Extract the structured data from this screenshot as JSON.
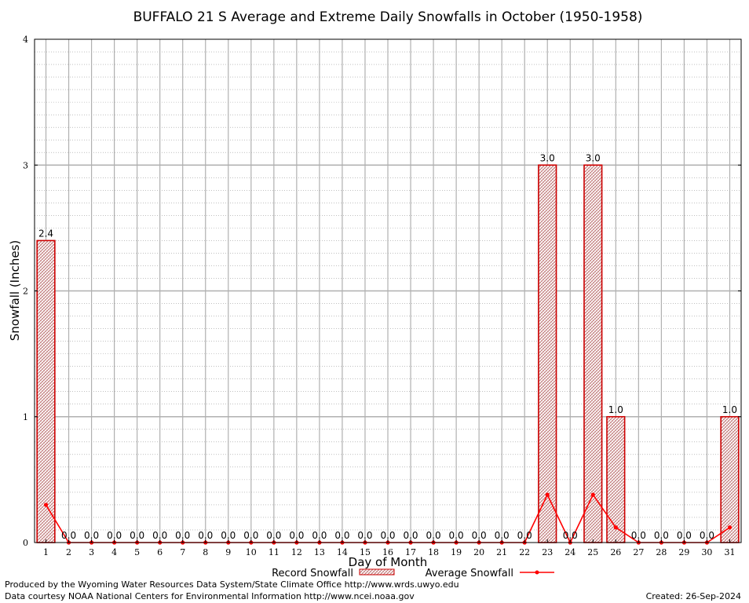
{
  "chart_data": {
    "type": "bar",
    "title": "BUFFALO 21 S Average and Extreme Daily Snowfalls in October (1950-1958)",
    "xlabel": "Day of Month",
    "ylabel": "Snowfall (Inches)",
    "ylim": [
      0,
      4
    ],
    "yticks": [
      "0",
      "1",
      "2",
      "3",
      "4"
    ],
    "categories": [
      "1",
      "2",
      "3",
      "4",
      "5",
      "6",
      "7",
      "8",
      "9",
      "10",
      "11",
      "12",
      "13",
      "14",
      "15",
      "16",
      "17",
      "18",
      "19",
      "20",
      "21",
      "22",
      "23",
      "24",
      "25",
      "26",
      "27",
      "28",
      "29",
      "30",
      "31"
    ],
    "series": [
      {
        "name": "Record Snowfall",
        "kind": "bar",
        "color": "#cc0000",
        "values": [
          2.4,
          0.0,
          0.0,
          0.0,
          0.0,
          0.0,
          0.0,
          0.0,
          0.0,
          0.0,
          0.0,
          0.0,
          0.0,
          0.0,
          0.0,
          0.0,
          0.0,
          0.0,
          0.0,
          0.0,
          0.0,
          0.0,
          3.0,
          0.0,
          3.0,
          1.0,
          0.0,
          0.0,
          0.0,
          0.0,
          1.0
        ],
        "labels": [
          "2.4",
          "0.0",
          "0.0",
          "0.0",
          "0.0",
          "0.0",
          "0.0",
          "0.0",
          "0.0",
          "0.0",
          "0.0",
          "0.0",
          "0.0",
          "0.0",
          "0.0",
          "0.0",
          "0.0",
          "0.0",
          "0.0",
          "0.0",
          "0.0",
          "0.0",
          "3.0",
          "0.0",
          "3.0",
          "1.0",
          "0.0",
          "0.0",
          "0.0",
          "0.0",
          "1.0"
        ]
      },
      {
        "name": "Average Snowfall",
        "kind": "line",
        "color": "#ff0000",
        "values": [
          0.3,
          0.0,
          0.0,
          0.0,
          0.0,
          0.0,
          0.0,
          0.0,
          0.0,
          0.0,
          0.0,
          0.0,
          0.0,
          0.0,
          0.0,
          0.0,
          0.0,
          0.0,
          0.0,
          0.0,
          0.0,
          0.0,
          0.38,
          0.0,
          0.38,
          0.12,
          0.0,
          0.0,
          0.0,
          0.0,
          0.12
        ]
      }
    ],
    "grid": true,
    "legend": "bottom-center"
  },
  "footer": {
    "left1": "Produced by the Wyoming Water Resources Data System/State Climate Office http://www.wrds.uwyo.edu",
    "left2": "Data courtesy NOAA National Centers for Environmental Information http://www.ncei.noaa.gov",
    "right": "Created:  26-Sep-2024"
  }
}
